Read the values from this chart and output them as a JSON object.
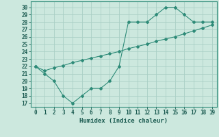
{
  "x": [
    0,
    1,
    2,
    3,
    4,
    5,
    6,
    7,
    8,
    9,
    10,
    11,
    12,
    13,
    14,
    15,
    16,
    17,
    18,
    19
  ],
  "y_curve": [
    22,
    21,
    20,
    18,
    17,
    18,
    19,
    19,
    20,
    22,
    28,
    28,
    28,
    29,
    30,
    30,
    29,
    28,
    28,
    28
  ],
  "y_line": [
    22,
    21.4,
    21.8,
    22.1,
    22.5,
    22.8,
    23.1,
    23.4,
    23.7,
    24.0,
    24.4,
    24.7,
    25.0,
    25.4,
    25.7,
    26.0,
    26.4,
    26.8,
    27.2,
    27.6
  ],
  "color": "#2e8b78",
  "bg_color": "#cce8de",
  "grid_color": "#aacfc5",
  "xlabel": "Humidex (Indice chaleur)",
  "xlim": [
    -0.5,
    19.5
  ],
  "ylim": [
    16.5,
    30.8
  ],
  "yticks": [
    17,
    18,
    19,
    20,
    21,
    22,
    23,
    24,
    25,
    26,
    27,
    28,
    29,
    30
  ],
  "xticks": [
    0,
    1,
    2,
    3,
    4,
    5,
    6,
    7,
    8,
    9,
    10,
    11,
    12,
    13,
    14,
    15,
    16,
    17,
    18,
    19
  ]
}
